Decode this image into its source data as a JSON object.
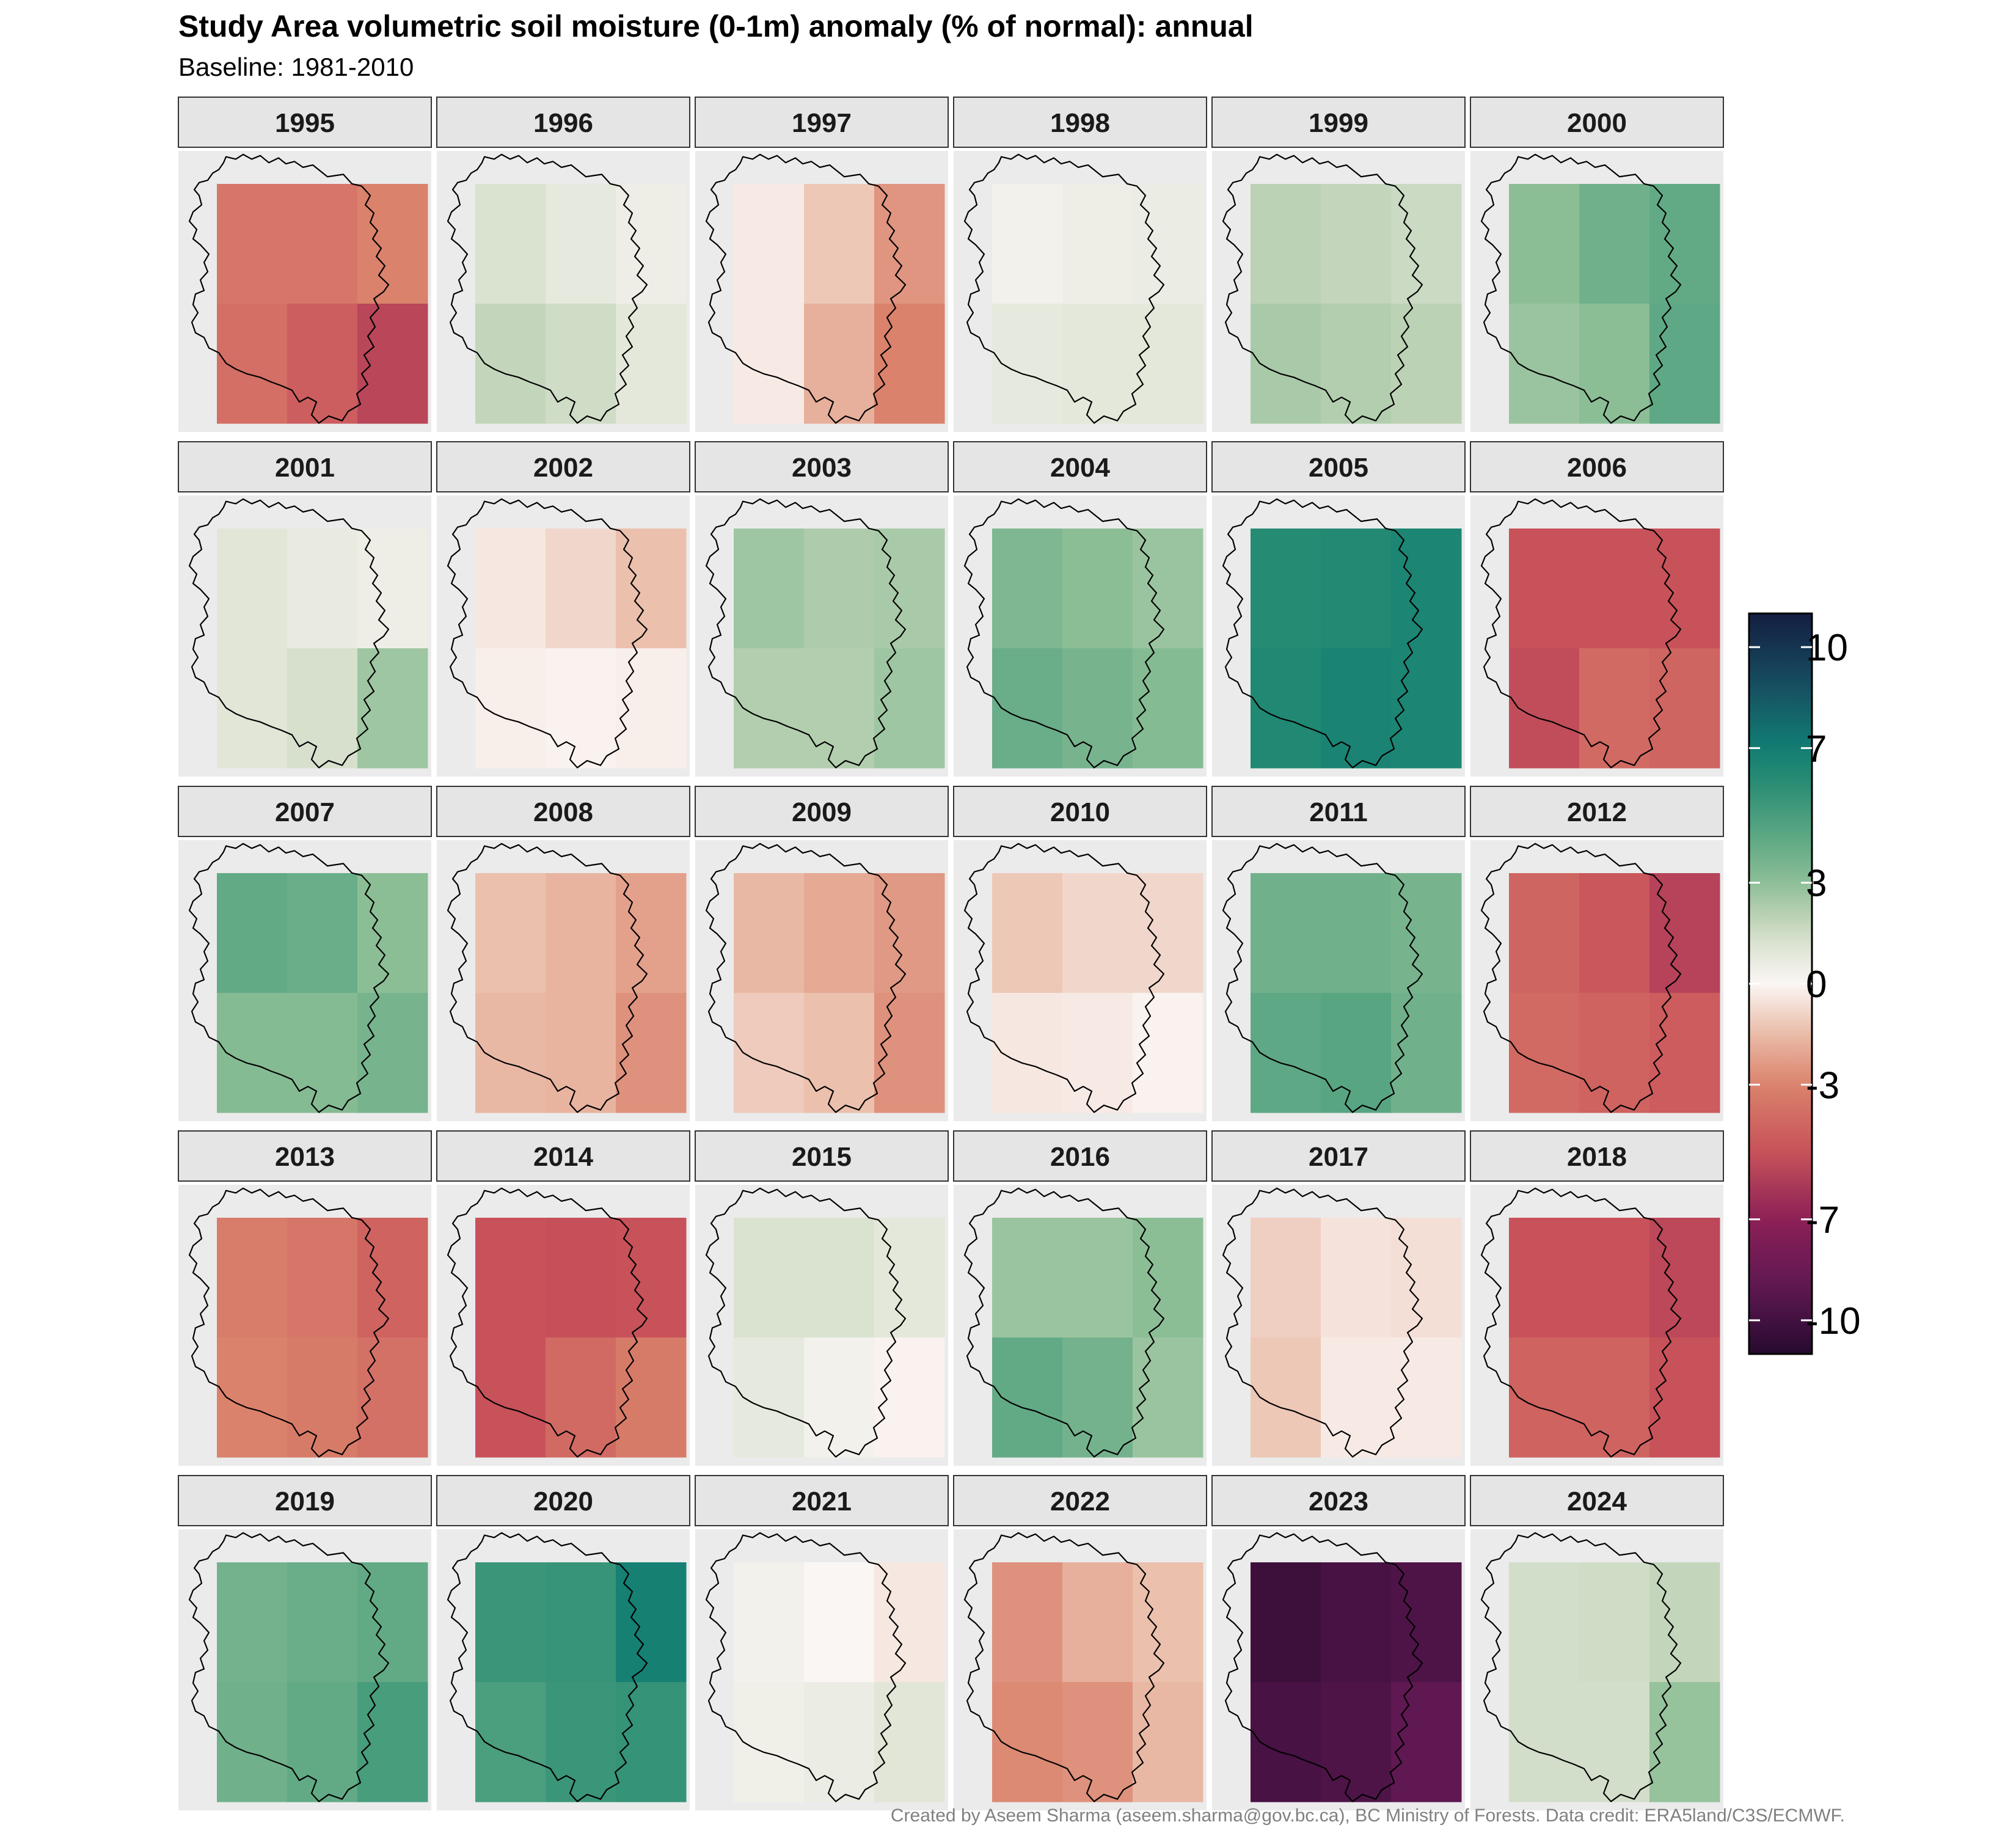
{
  "title": "Study Area volumetric soil moisture (0-1m) anomaly (% of normal): annual",
  "subtitle": "Baseline: 1981-2010",
  "caption": "Created by Aseem Sharma (aseem.sharma@gov.bc.ca), BC Ministry of Forests. Data credit: ERA5land/C3S/ECMWF.",
  "chart_data": {
    "type": "heatmap",
    "title": "Study Area volumetric soil moisture (0-1m) anomaly (% of normal): annual",
    "subtitle": "Baseline: 1981-2010",
    "facet_by": "year",
    "grid": "3 columns x 2 rows of cells per panel",
    "cell_layout_note": "values listed row-major: [top-left, top-mid, top-right, bottom-left, bottom-mid, bottom-right]",
    "colorbar": {
      "ticks": [
        10,
        7,
        3,
        0,
        -3,
        -7,
        -10
      ],
      "tick_labels": [
        "10",
        "7",
        "3",
        "0",
        "-3",
        "-7",
        "-10"
      ],
      "range": [
        -11,
        11
      ],
      "palette": "diverging: dark purple (dry) - red - white (0) - green - teal - dark navy (wet)",
      "position": "right"
    },
    "panels": [
      {
        "year": "1995",
        "values": [
          -3.5,
          -3.5,
          -3.0,
          -3.8,
          -4.5,
          -5.5
        ]
      },
      {
        "year": "1996",
        "values": [
          1.2,
          0.8,
          0.5,
          1.8,
          1.5,
          0.9
        ]
      },
      {
        "year": "1997",
        "values": [
          -0.3,
          -1.2,
          -2.5,
          -0.3,
          -1.8,
          -3.0
        ]
      },
      {
        "year": "1998",
        "values": [
          0.3,
          0.5,
          0.6,
          0.8,
          0.9,
          0.9
        ]
      },
      {
        "year": "1999",
        "values": [
          2.0,
          1.8,
          1.6,
          2.4,
          2.2,
          2.0
        ]
      },
      {
        "year": "2000",
        "values": [
          3.0,
          3.8,
          4.2,
          2.7,
          3.0,
          4.3
        ]
      },
      {
        "year": "2001",
        "values": [
          1.0,
          0.7,
          0.5,
          1.0,
          1.3,
          2.6
        ]
      },
      {
        "year": "2002",
        "values": [
          -0.4,
          -0.8,
          -1.4,
          -0.2,
          -0.1,
          -0.2
        ]
      },
      {
        "year": "2003",
        "values": [
          2.6,
          2.3,
          2.4,
          2.2,
          2.2,
          2.6
        ]
      },
      {
        "year": "2004",
        "values": [
          3.4,
          3.0,
          2.7,
          4.0,
          3.6,
          3.2
        ]
      },
      {
        "year": "2005",
        "values": [
          6.1,
          6.2,
          6.5,
          6.3,
          6.6,
          6.5
        ]
      },
      {
        "year": "2006",
        "values": [
          -5.0,
          -5.0,
          -5.0,
          -5.2,
          -4.0,
          -4.2
        ]
      },
      {
        "year": "2007",
        "values": [
          4.2,
          4.0,
          3.0,
          3.2,
          3.2,
          3.6
        ]
      },
      {
        "year": "2008",
        "values": [
          -1.4,
          -1.7,
          -2.2,
          -1.6,
          -1.7,
          -2.6
        ]
      },
      {
        "year": "2009",
        "values": [
          -1.6,
          -2.0,
          -2.4,
          -1.1,
          -1.4,
          -2.6
        ]
      },
      {
        "year": "2010",
        "values": [
          -1.2,
          -0.8,
          -0.8,
          -0.4,
          -0.3,
          -0.1
        ]
      },
      {
        "year": "2011",
        "values": [
          3.8,
          3.8,
          3.6,
          4.3,
          4.5,
          3.8
        ]
      },
      {
        "year": "2012",
        "values": [
          -4.2,
          -4.8,
          -5.6,
          -4.0,
          -4.3,
          -4.6
        ]
      },
      {
        "year": "2013",
        "values": [
          -3.2,
          -3.5,
          -4.3,
          -3.0,
          -3.3,
          -3.7
        ]
      },
      {
        "year": "2014",
        "values": [
          -5.0,
          -5.1,
          -5.0,
          -5.0,
          -4.0,
          -3.3
        ]
      },
      {
        "year": "2015",
        "values": [
          1.2,
          1.2,
          0.9,
          0.8,
          0.3,
          -0.1
        ]
      },
      {
        "year": "2016",
        "values": [
          2.7,
          2.7,
          3.0,
          4.2,
          3.7,
          2.7
        ]
      },
      {
        "year": "2017",
        "values": [
          -1.0,
          -0.5,
          -0.6,
          -1.2,
          -0.3,
          -0.3
        ]
      },
      {
        "year": "2018",
        "values": [
          -5.0,
          -5.0,
          -5.4,
          -4.3,
          -4.3,
          -5.0
        ]
      },
      {
        "year": "2019",
        "values": [
          3.7,
          4.0,
          4.2,
          3.8,
          4.2,
          5.0
        ]
      },
      {
        "year": "2020",
        "values": [
          5.4,
          5.5,
          6.8,
          4.9,
          5.4,
          5.6
        ]
      },
      {
        "year": "2021",
        "values": [
          0.3,
          0.0,
          -0.4,
          0.4,
          0.6,
          1.0
        ]
      },
      {
        "year": "2022",
        "values": [
          -2.6,
          -1.8,
          -1.4,
          -2.8,
          -2.6,
          -1.6
        ]
      },
      {
        "year": "2023",
        "values": [
          -10.2,
          -9.8,
          -9.6,
          -9.8,
          -9.6,
          -9.0
        ]
      },
      {
        "year": "2024",
        "values": [
          1.4,
          1.5,
          1.8,
          1.4,
          1.4,
          2.8
        ]
      }
    ]
  }
}
